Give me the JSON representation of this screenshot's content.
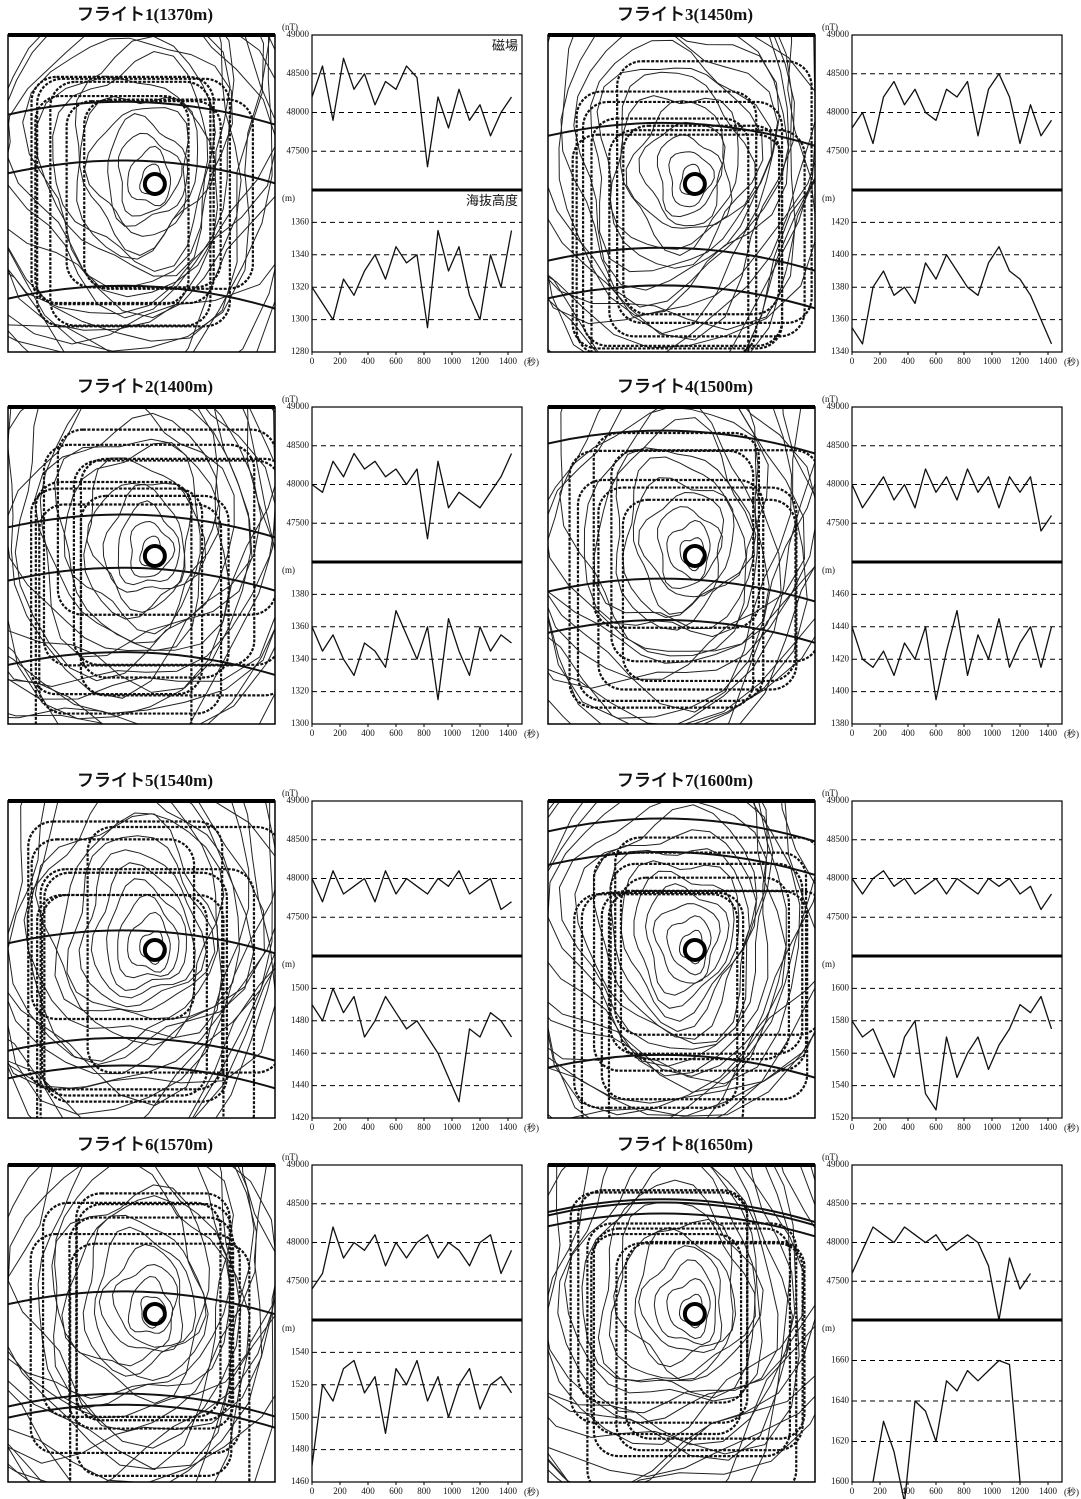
{
  "chart_data": [
    {
      "type": "line",
      "title": "フライト1(1370m)",
      "ylabel": "(nT)",
      "annotation": "磁場",
      "x": [
        0,
        75,
        150,
        225,
        300,
        375,
        450,
        525,
        600,
        675,
        750,
        825,
        900,
        975,
        1050,
        1125,
        1200,
        1275,
        1350,
        1425
      ],
      "xlim": [
        0,
        1500
      ],
      "ylim": [
        47000,
        49000
      ],
      "yticks": [
        47500,
        48000,
        48500,
        49000
      ],
      "grid": true,
      "color": "#111111",
      "values": [
        48200,
        48600,
        47900,
        48700,
        48300,
        48500,
        48100,
        48400,
        48300,
        48600,
        48450,
        47300,
        48200,
        47800,
        48300,
        47900,
        48100,
        47700,
        48000,
        48200
      ]
    },
    {
      "type": "line",
      "ylabel": "(m)",
      "annotation": "海抜高度",
      "x": [
        0,
        75,
        150,
        225,
        300,
        375,
        450,
        525,
        600,
        675,
        750,
        825,
        900,
        975,
        1050,
        1125,
        1200,
        1275,
        1350,
        1425
      ],
      "xlim": [
        0,
        1500
      ],
      "xticks": [
        0,
        200,
        400,
        600,
        800,
        1000,
        1200,
        1400
      ],
      "xlabel": "(秒)",
      "ylim": [
        1280,
        1380
      ],
      "yticks": [
        1280,
        1300,
        1320,
        1340,
        1360
      ],
      "grid": true,
      "color": "#111111",
      "values": [
        1320,
        1310,
        1300,
        1325,
        1315,
        1330,
        1340,
        1325,
        1345,
        1335,
        1340,
        1295,
        1355,
        1330,
        1345,
        1315,
        1300,
        1340,
        1320,
        1355
      ]
    },
    {
      "type": "line",
      "title": "フライト3(1450m)",
      "ylabel": "(nT)",
      "x": [
        0,
        75,
        150,
        225,
        300,
        375,
        450,
        525,
        600,
        675,
        750,
        825,
        900,
        975,
        1050,
        1125,
        1200,
        1275,
        1350,
        1425
      ],
      "xlim": [
        0,
        1500
      ],
      "ylim": [
        47000,
        49000
      ],
      "yticks": [
        47500,
        48000,
        48500,
        49000
      ],
      "grid": true,
      "color": "#111111",
      "values": [
        47800,
        48000,
        47600,
        48200,
        48400,
        48100,
        48300,
        48000,
        47900,
        48300,
        48200,
        48400,
        47700,
        48300,
        48500,
        48200,
        47600,
        48100,
        47700,
        47900
      ]
    },
    {
      "type": "line",
      "ylabel": "(m)",
      "x": [
        0,
        75,
        150,
        225,
        300,
        375,
        450,
        525,
        600,
        675,
        750,
        825,
        900,
        975,
        1050,
        1125,
        1200,
        1275,
        1350,
        1425
      ],
      "xlim": [
        0,
        1500
      ],
      "xticks": [
        0,
        200,
        400,
        600,
        800,
        1000,
        1200,
        1400
      ],
      "xlabel": "(秒)",
      "ylim": [
        1340,
        1440
      ],
      "yticks": [
        1340,
        1360,
        1380,
        1400,
        1420
      ],
      "grid": true,
      "color": "#111111",
      "values": [
        1355,
        1345,
        1380,
        1390,
        1375,
        1380,
        1370,
        1395,
        1385,
        1400,
        1390,
        1380,
        1375,
        1395,
        1405,
        1390,
        1385,
        1375,
        1360,
        1345
      ]
    },
    {
      "type": "line",
      "title": "フライト2(1400m)",
      "ylabel": "(nT)",
      "x": [
        0,
        75,
        150,
        225,
        300,
        375,
        450,
        525,
        600,
        675,
        750,
        825,
        900,
        975,
        1050,
        1125,
        1200,
        1275,
        1350,
        1425
      ],
      "xlim": [
        0,
        1500
      ],
      "ylim": [
        47000,
        49000
      ],
      "yticks": [
        47500,
        48000,
        48500,
        49000
      ],
      "grid": true,
      "color": "#111111",
      "values": [
        48000,
        47900,
        48300,
        48100,
        48400,
        48200,
        48300,
        48100,
        48200,
        48000,
        48200,
        47300,
        48300,
        47700,
        47900,
        47800,
        47700,
        47900,
        48100,
        48400
      ]
    },
    {
      "type": "line",
      "ylabel": "(m)",
      "x": [
        0,
        75,
        150,
        225,
        300,
        375,
        450,
        525,
        600,
        675,
        750,
        825,
        900,
        975,
        1050,
        1125,
        1200,
        1275,
        1350,
        1425
      ],
      "xlim": [
        0,
        1500
      ],
      "xticks": [
        0,
        200,
        400,
        600,
        800,
        1000,
        1200,
        1400
      ],
      "xlabel": "(秒)",
      "ylim": [
        1300,
        1400
      ],
      "yticks": [
        1300,
        1320,
        1340,
        1360,
        1380
      ],
      "grid": true,
      "color": "#111111",
      "values": [
        1360,
        1345,
        1355,
        1340,
        1330,
        1350,
        1345,
        1335,
        1370,
        1355,
        1340,
        1360,
        1315,
        1365,
        1345,
        1330,
        1360,
        1345,
        1355,
        1350
      ]
    },
    {
      "type": "line",
      "title": "フライト4(1500m)",
      "ylabel": "(nT)",
      "x": [
        0,
        75,
        150,
        225,
        300,
        375,
        450,
        525,
        600,
        675,
        750,
        825,
        900,
        975,
        1050,
        1125,
        1200,
        1275,
        1350,
        1425
      ],
      "xlim": [
        0,
        1500
      ],
      "ylim": [
        47000,
        49000
      ],
      "yticks": [
        47500,
        48000,
        48500,
        49000
      ],
      "grid": true,
      "color": "#111111",
      "values": [
        48000,
        47700,
        47900,
        48100,
        47800,
        48000,
        47700,
        48200,
        47900,
        48100,
        47800,
        48200,
        47900,
        48100,
        47700,
        48100,
        47900,
        48100,
        47400,
        47600
      ]
    },
    {
      "type": "line",
      "ylabel": "(m)",
      "x": [
        0,
        75,
        150,
        225,
        300,
        375,
        450,
        525,
        600,
        675,
        750,
        825,
        900,
        975,
        1050,
        1125,
        1200,
        1275,
        1350,
        1425
      ],
      "xlim": [
        0,
        1500
      ],
      "xticks": [
        0,
        200,
        400,
        600,
        800,
        1000,
        1200,
        1400
      ],
      "xlabel": "(秒)",
      "ylim": [
        1380,
        1480
      ],
      "yticks": [
        1380,
        1400,
        1420,
        1440,
        1460
      ],
      "grid": true,
      "color": "#111111",
      "values": [
        1440,
        1420,
        1415,
        1425,
        1410,
        1430,
        1420,
        1440,
        1395,
        1425,
        1450,
        1410,
        1435,
        1420,
        1445,
        1415,
        1430,
        1440,
        1415,
        1440
      ]
    },
    {
      "type": "line",
      "title": "フライト5(1540m)",
      "ylabel": "(nT)",
      "x": [
        0,
        75,
        150,
        225,
        300,
        375,
        450,
        525,
        600,
        675,
        750,
        825,
        900,
        975,
        1050,
        1125,
        1200,
        1275,
        1350,
        1425
      ],
      "xlim": [
        0,
        1500
      ],
      "ylim": [
        47000,
        49000
      ],
      "yticks": [
        47500,
        48000,
        48500,
        49000
      ],
      "grid": true,
      "color": "#111111",
      "values": [
        48000,
        47700,
        48100,
        47800,
        47900,
        48000,
        47700,
        48100,
        47800,
        48000,
        47900,
        47800,
        48000,
        47900,
        48100,
        47800,
        47900,
        48000,
        47600,
        47700
      ]
    },
    {
      "type": "line",
      "ylabel": "(m)",
      "x": [
        0,
        75,
        150,
        225,
        300,
        375,
        450,
        525,
        600,
        675,
        750,
        825,
        900,
        975,
        1050,
        1125,
        1200,
        1275,
        1350,
        1425
      ],
      "xlim": [
        0,
        1500
      ],
      "xticks": [
        0,
        200,
        400,
        600,
        800,
        1000,
        1200,
        1400
      ],
      "xlabel": "(秒)",
      "ylim": [
        1420,
        1520
      ],
      "yticks": [
        1420,
        1440,
        1460,
        1480,
        1500
      ],
      "grid": true,
      "color": "#111111",
      "values": [
        1490,
        1480,
        1500,
        1485,
        1495,
        1470,
        1480,
        1495,
        1485,
        1475,
        1480,
        1470,
        1460,
        1445,
        1430,
        1475,
        1470,
        1485,
        1480,
        1470
      ]
    },
    {
      "type": "line",
      "title": "フライト7(1600m)",
      "ylabel": "(nT)",
      "x": [
        0,
        75,
        150,
        225,
        300,
        375,
        450,
        525,
        600,
        675,
        750,
        825,
        900,
        975,
        1050,
        1125,
        1200,
        1275,
        1350,
        1425
      ],
      "xlim": [
        0,
        1500
      ],
      "ylim": [
        47000,
        49000
      ],
      "yticks": [
        47500,
        48000,
        48500,
        49000
      ],
      "grid": true,
      "color": "#111111",
      "values": [
        48000,
        47800,
        48000,
        48100,
        47900,
        48000,
        47800,
        47900,
        48000,
        47800,
        48000,
        47900,
        47800,
        48000,
        47900,
        48000,
        47800,
        47900,
        47600,
        47800
      ]
    },
    {
      "type": "line",
      "ylabel": "(m)",
      "x": [
        0,
        75,
        150,
        225,
        300,
        375,
        450,
        525,
        600,
        675,
        750,
        825,
        900,
        975,
        1050,
        1125,
        1200,
        1275,
        1350,
        1425
      ],
      "xlim": [
        0,
        1500
      ],
      "xticks": [
        0,
        200,
        400,
        600,
        800,
        1000,
        1200,
        1400
      ],
      "xlabel": "(秒)",
      "ylim": [
        1520,
        1620
      ],
      "yticks": [
        1520,
        1540,
        1560,
        1580,
        1600
      ],
      "grid": true,
      "color": "#111111",
      "values": [
        1580,
        1570,
        1575,
        1560,
        1545,
        1570,
        1580,
        1535,
        1525,
        1570,
        1545,
        1560,
        1570,
        1550,
        1565,
        1575,
        1590,
        1585,
        1595,
        1575
      ]
    },
    {
      "type": "line",
      "title": "フライト6(1570m)",
      "ylabel": "(nT)",
      "x": [
        0,
        75,
        150,
        225,
        300,
        375,
        450,
        525,
        600,
        675,
        750,
        825,
        900,
        975,
        1050,
        1125,
        1200,
        1275,
        1350,
        1425
      ],
      "xlim": [
        0,
        1500
      ],
      "ylim": [
        47000,
        49000
      ],
      "yticks": [
        47500,
        48000,
        48500,
        49000
      ],
      "grid": true,
      "color": "#111111",
      "values": [
        47400,
        47600,
        48200,
        47800,
        48000,
        47900,
        48100,
        47700,
        48000,
        47800,
        48000,
        48100,
        47800,
        48000,
        47900,
        47700,
        48000,
        48100,
        47600,
        47900
      ]
    },
    {
      "type": "line",
      "ylabel": "(m)",
      "x": [
        0,
        75,
        150,
        225,
        300,
        375,
        450,
        525,
        600,
        675,
        750,
        825,
        900,
        975,
        1050,
        1125,
        1200,
        1275,
        1350,
        1425
      ],
      "xlim": [
        0,
        1500
      ],
      "xticks": [
        0,
        200,
        400,
        600,
        800,
        1000,
        1200,
        1400
      ],
      "xlabel": "(秒)",
      "ylim": [
        1460,
        1560
      ],
      "yticks": [
        1460,
        1480,
        1500,
        1520,
        1540
      ],
      "grid": true,
      "color": "#111111",
      "values": [
        1470,
        1520,
        1510,
        1530,
        1535,
        1515,
        1525,
        1490,
        1530,
        1520,
        1535,
        1510,
        1525,
        1500,
        1520,
        1530,
        1505,
        1520,
        1525,
        1515
      ]
    },
    {
      "type": "line",
      "title": "フライト8(1650m)",
      "ylabel": "(nT)",
      "x": [
        0,
        75,
        150,
        225,
        300,
        375,
        450,
        525,
        600,
        675,
        750,
        825,
        900,
        975,
        1050,
        1125,
        1200,
        1275,
        1350,
        1425
      ],
      "xlim": [
        0,
        1500
      ],
      "ylim": [
        47000,
        49000
      ],
      "yticks": [
        47500,
        48000,
        48500,
        49000
      ],
      "grid": true,
      "color": "#111111",
      "values": [
        47600,
        47900,
        48200,
        48100,
        48000,
        48200,
        48100,
        48000,
        48100,
        47900,
        48000,
        48100,
        48000,
        47700,
        47000,
        47800,
        47400,
        47600,
        null,
        null
      ]
    },
    {
      "type": "line",
      "ylabel": "(m)",
      "x": [
        0,
        75,
        150,
        225,
        300,
        375,
        450,
        525,
        600,
        675,
        750,
        825,
        900,
        975,
        1050,
        1125,
        1200,
        1275,
        1350,
        1425
      ],
      "xlim": [
        0,
        1500
      ],
      "xticks": [
        0,
        200,
        400,
        600,
        800,
        1000,
        1200,
        1400
      ],
      "xlabel": "(秒)",
      "ylim": [
        1600,
        1680
      ],
      "yticks": [
        1600,
        1620,
        1640,
        1660
      ],
      "grid": true,
      "color": "#111111",
      "values": [
        null,
        null,
        1600,
        1630,
        1615,
        1590,
        1640,
        1635,
        1620,
        1650,
        1645,
        1655,
        1650,
        1655,
        1660,
        1658,
        1600,
        null,
        null,
        null
      ]
    }
  ]
}
